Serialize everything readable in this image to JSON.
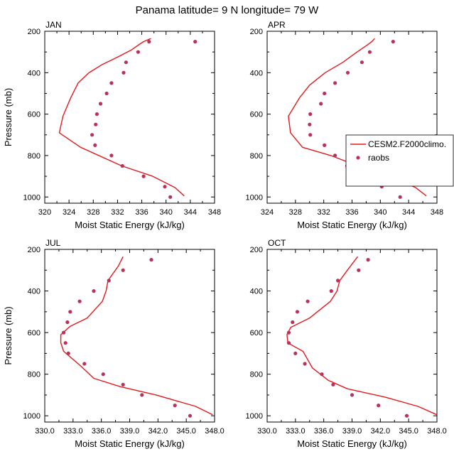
{
  "figure": {
    "title": "Panama  latitude= 9 N longitude= 79 W"
  },
  "colors": {
    "model": "#e31a1c",
    "obs": "#b8325a",
    "axis": "#000000"
  },
  "legend": {
    "model_label": "CESM2.F2000climo.",
    "obs_label": "raobs",
    "panel": 1
  },
  "chart_data": [
    {
      "type": "line",
      "panel_label": "JAN",
      "xlabel": "Moist Static Energy (kJ/kg)",
      "ylabel": "Pressure (mb)",
      "xlim": [
        320,
        348
      ],
      "ylim": [
        200,
        1030
      ],
      "y_inverted": true,
      "xticks": [
        320,
        324,
        328,
        332,
        336,
        340,
        344,
        348
      ],
      "xtick_labels": [
        "320",
        "324",
        "328",
        "332",
        "336",
        "340",
        "344",
        "348"
      ],
      "yticks": [
        200,
        400,
        600,
        800,
        1000
      ],
      "ytick_labels": [
        "200",
        "400",
        "600",
        "800",
        "1000"
      ],
      "series": [
        {
          "name": "CESM2.F2000climo.",
          "kind": "line",
          "x": [
            343.0,
            341.5,
            337.8,
            332.7,
            325.9,
            322.4,
            323.0,
            324.3,
            325.5,
            327.3,
            329.5,
            332.0,
            334.3,
            335.5,
            336.3,
            337.5
          ],
          "y": [
            995,
            955,
            900,
            850,
            760,
            690,
            610,
            520,
            450,
            400,
            360,
            325,
            290,
            265,
            250,
            235
          ]
        },
        {
          "name": "raobs",
          "kind": "scatter",
          "x": [
            340.7,
            339.8,
            336.3,
            332.8,
            331.0,
            328.3,
            327.8,
            328.4,
            328.6,
            329.2,
            330.2,
            331.0,
            333.0,
            333.4,
            335.4,
            337.2,
            344.8
          ],
          "y": [
            1000,
            950,
            900,
            850,
            800,
            750,
            700,
            650,
            600,
            550,
            500,
            450,
            400,
            350,
            300,
            250,
            250
          ]
        }
      ]
    },
    {
      "type": "line",
      "panel_label": "APR",
      "xlabel": "Moist Static Energy (kJ/kg)",
      "ylabel": "",
      "xlim": [
        324,
        348
      ],
      "ylim": [
        200,
        1030
      ],
      "y_inverted": true,
      "xticks": [
        324,
        328,
        332,
        336,
        340,
        344,
        348
      ],
      "xtick_labels": [
        "324",
        "328",
        "332",
        "336",
        "340",
        "344",
        "348"
      ],
      "yticks": [
        200,
        400,
        600,
        800,
        1000
      ],
      "ytick_labels": [
        "200",
        "400",
        "600",
        "800",
        "1000"
      ],
      "series": [
        {
          "name": "CESM2.F2000climo.",
          "kind": "line",
          "x": [
            346.5,
            345.0,
            341.5,
            336.8,
            333.0,
            329.0,
            327.3,
            327.0,
            328.6,
            330.0,
            332.2,
            334.7,
            336.7,
            338.0,
            338.8,
            339.2
          ],
          "y": [
            995,
            955,
            900,
            850,
            800,
            760,
            690,
            610,
            520,
            460,
            400,
            350,
            300,
            270,
            250,
            235
          ]
        },
        {
          "name": "raobs",
          "kind": "scatter",
          "x": [
            342.8,
            340.2,
            338.0,
            335.3,
            333.6,
            332.1,
            330.1,
            330.0,
            330.1,
            331.6,
            332.1,
            333.6,
            335.4,
            337.4,
            338.5,
            341.8
          ],
          "y": [
            1000,
            950,
            900,
            850,
            800,
            750,
            700,
            650,
            600,
            550,
            500,
            450,
            400,
            350,
            300,
            250
          ]
        }
      ]
    },
    {
      "type": "line",
      "panel_label": "JUL",
      "xlabel": "Moist Static Energy (kJ/kg)",
      "ylabel": "Pressure (mb)",
      "xlim": [
        330,
        348
      ],
      "ylim": [
        200,
        1030
      ],
      "y_inverted": true,
      "xticks": [
        330,
        333,
        336,
        339,
        342,
        345,
        348
      ],
      "xtick_labels": [
        "330.0",
        "333.0",
        "336.0",
        "339.0",
        "342.0",
        "345.0",
        "348.0"
      ],
      "yticks": [
        200,
        400,
        600,
        800,
        1000
      ],
      "ytick_labels": [
        "200",
        "400",
        "600",
        "800",
        "1000"
      ],
      "series": [
        {
          "name": "CESM2.F2000climo.",
          "kind": "line",
          "x": [
            347.8,
            346.0,
            341.8,
            338.0,
            335.2,
            333.8,
            332.0,
            331.7,
            331.7,
            332.7,
            334.5,
            336.1,
            336.5,
            336.7,
            337.8,
            338.3
          ],
          "y": [
            995,
            955,
            900,
            860,
            820,
            760,
            690,
            650,
            610,
            570,
            530,
            450,
            400,
            350,
            280,
            235
          ]
        },
        {
          "name": "raobs",
          "kind": "scatter",
          "x": [
            345.4,
            343.8,
            340.3,
            338.3,
            336.2,
            334.2,
            332.5,
            332.2,
            332.0,
            332.4,
            332.7,
            333.7,
            335.2,
            336.8,
            338.3,
            341.3
          ],
          "y": [
            1000,
            950,
            900,
            850,
            800,
            750,
            700,
            650,
            600,
            550,
            500,
            450,
            400,
            350,
            300,
            250
          ]
        }
      ]
    },
    {
      "type": "line",
      "panel_label": "OCT",
      "xlabel": "Moist Static Energy (kJ/kg)",
      "ylabel": "",
      "xlim": [
        330,
        348
      ],
      "ylim": [
        200,
        1030
      ],
      "y_inverted": true,
      "xticks": [
        330,
        333,
        336,
        339,
        342,
        345,
        348
      ],
      "xtick_labels": [
        "330.0",
        "333.0",
        "336.0",
        "339.0",
        "342.0",
        "345.0",
        "348.0"
      ],
      "yticks": [
        200,
        400,
        600,
        800,
        1000
      ],
      "ytick_labels": [
        "200",
        "400",
        "600",
        "800",
        "1000"
      ],
      "series": [
        {
          "name": "CESM2.F2000climo.",
          "kind": "line",
          "x": [
            348.0,
            346.0,
            342.5,
            338.5,
            336.5,
            334.8,
            333.8,
            332.2,
            332.1,
            332.5,
            334.5,
            336.7,
            337.4,
            337.7,
            338.5,
            339.6
          ],
          "y": [
            995,
            955,
            910,
            870,
            830,
            770,
            690,
            650,
            610,
            575,
            530,
            450,
            400,
            350,
            300,
            235
          ]
        },
        {
          "name": "raobs",
          "kind": "scatter",
          "x": [
            344.8,
            341.8,
            339.0,
            337.0,
            335.8,
            334.0,
            333.0,
            332.3,
            332.3,
            332.7,
            333.2,
            334.3,
            336.8,
            337.5,
            339.7,
            340.7
          ],
          "y": [
            1000,
            950,
            900,
            850,
            800,
            750,
            700,
            650,
            600,
            550,
            500,
            450,
            400,
            350,
            300,
            250
          ]
        }
      ]
    }
  ]
}
